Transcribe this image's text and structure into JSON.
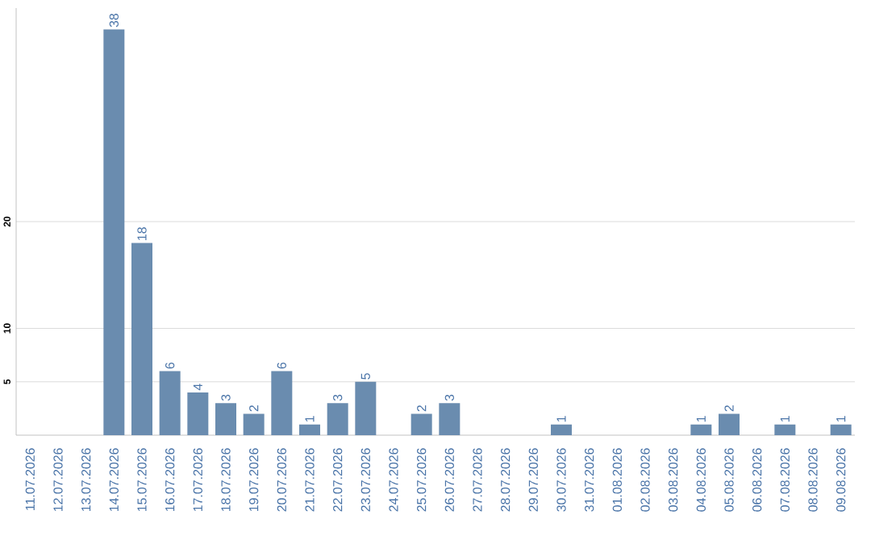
{
  "chart_data": {
    "type": "bar",
    "categories": [
      "11.07.2026",
      "12.07.2026",
      "13.07.2026",
      "14.07.2026",
      "15.07.2026",
      "16.07.2026",
      "17.07.2026",
      "18.07.2026",
      "19.07.2026",
      "20.07.2026",
      "21.07.2026",
      "22.07.2026",
      "23.07.2026",
      "24.07.2026",
      "25.07.2026",
      "26.07.2026",
      "27.07.2026",
      "28.07.2026",
      "29.07.2026",
      "30.07.2026",
      "31.07.2026",
      "01.08.2026",
      "02.08.2026",
      "03.08.2026",
      "04.08.2026",
      "05.08.2026",
      "06.08.2026",
      "07.08.2026",
      "08.08.2026",
      "09.08.2026"
    ],
    "values": [
      0,
      0,
      0,
      38,
      18,
      6,
      4,
      3,
      2,
      6,
      1,
      3,
      5,
      0,
      2,
      3,
      0,
      0,
      0,
      1,
      0,
      0,
      0,
      0,
      1,
      2,
      0,
      1,
      0,
      1
    ],
    "value_labels": [
      null,
      null,
      null,
      "38",
      "18",
      "6",
      "4",
      "3",
      "2",
      "6",
      "1",
      "3",
      "5",
      null,
      "2",
      "3",
      null,
      null,
      null,
      "1",
      null,
      null,
      null,
      null,
      "1",
      "2",
      null,
      "1",
      null,
      "1"
    ],
    "color": "#6a8caf",
    "ylim": [
      0,
      40
    ],
    "yticks": [
      5,
      10,
      20
    ],
    "grid": "y"
  }
}
